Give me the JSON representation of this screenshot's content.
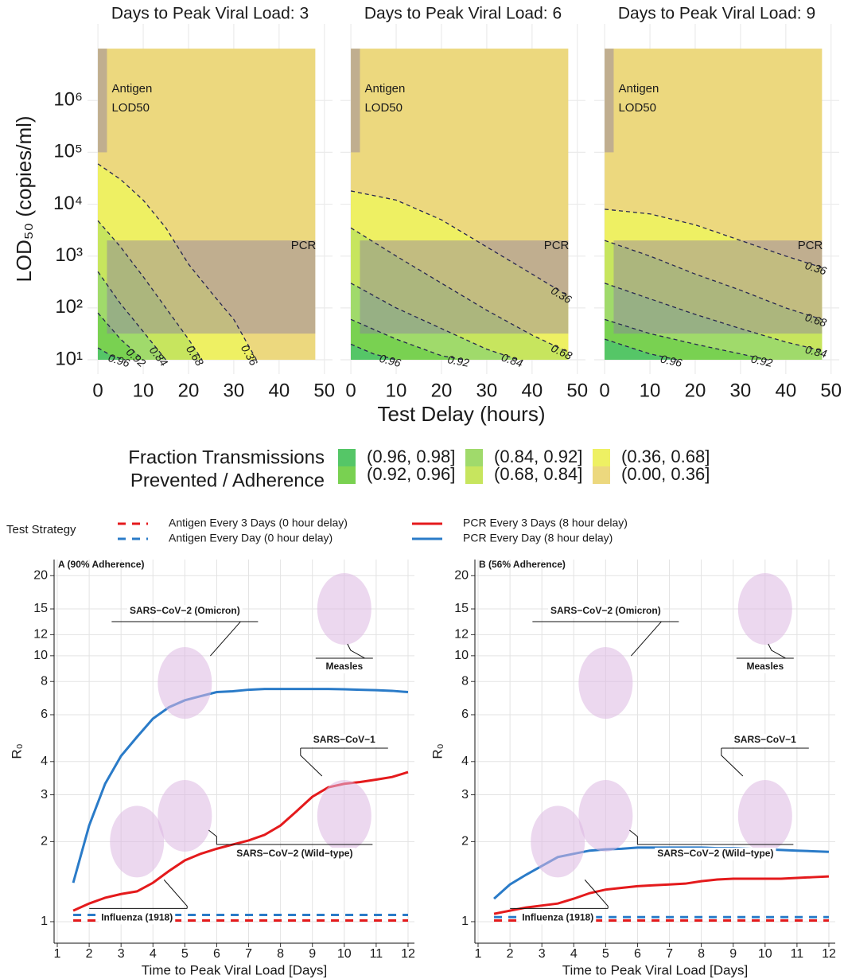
{
  "top_figure": {
    "xlabel": "Test Delay (hours)",
    "legend_title": [
      "Fraction Transmissions",
      "Prevented / Adherence"
    ],
    "bands": [
      {
        "label": "(0.96, 0.98]",
        "color": "#55c667"
      },
      {
        "label": "(0.92, 0.96]",
        "color": "#79d151"
      },
      {
        "label": "(0.84, 0.92]",
        "color": "#a0da6b"
      },
      {
        "label": "(0.68, 0.84]",
        "color": "#c7e55e"
      },
      {
        "label": "(0.36, 0.68]",
        "color": "#eef063"
      },
      {
        "label": "(0.00, 0.36]",
        "color": "#ecd87e"
      }
    ]
  },
  "bottom_figure": {
    "legend_title": "Test Strategy"
  },
  "chart_data": [
    {
      "type": "contour",
      "title": "Days to Peak Viral Load: 3",
      "ylabel": "LOD₅₀ (copies/ml)",
      "xlim": [
        -2.3,
        51.8
      ],
      "ylim": [
        5.3,
        30000000
      ],
      "log_y": true,
      "grid": true,
      "xticks": [
        0,
        10,
        20,
        30,
        40,
        50
      ],
      "yticks": [
        {
          "value": 10,
          "label": "10¹"
        },
        {
          "value": 100,
          "label": "10²"
        },
        {
          "value": 1000,
          "label": "10³"
        },
        {
          "value": 10000,
          "label": "10⁴"
        },
        {
          "value": 100000,
          "label": "10⁵"
        },
        {
          "value": 1000000,
          "label": "10⁶"
        }
      ],
      "extent": {
        "x": [
          0,
          48
        ],
        "y": [
          10,
          10000000
        ]
      },
      "boxes": [
        {
          "label": [
            "Antigen",
            "LOD50"
          ],
          "x": [
            0,
            2
          ],
          "y": [
            100000,
            10000000
          ]
        },
        {
          "label": [
            "PCR"
          ],
          "x": [
            2,
            48
          ],
          "y": [
            32,
            2000
          ]
        }
      ],
      "contours": [
        {
          "level": 0.96,
          "x": [
            0,
            3,
            6
          ],
          "y": [
            17,
            12,
            10
          ]
        },
        {
          "level": 0.92,
          "x": [
            0,
            5,
            10
          ],
          "y": [
            80,
            25,
            10
          ]
        },
        {
          "level": 0.84,
          "x": [
            0,
            5,
            10,
            15
          ],
          "y": [
            500,
            120,
            35,
            10
          ]
        },
        {
          "level": 0.68,
          "x": [
            0,
            5,
            10,
            15,
            20,
            23
          ],
          "y": [
            4800,
            1500,
            400,
            100,
            25,
            10
          ]
        },
        {
          "level": 0.36,
          "x": [
            0,
            5,
            10,
            15,
            20,
            25,
            30,
            35
          ],
          "y": [
            60000,
            30000,
            12000,
            3500,
            700,
            200,
            60,
            10
          ]
        }
      ]
    },
    {
      "type": "contour",
      "title": "Days to Peak Viral Load: 6",
      "xlim": [
        -2.3,
        51.8
      ],
      "ylim": [
        5.3,
        30000000
      ],
      "log_y": true,
      "grid": true,
      "xticks": [
        0,
        10,
        20,
        30,
        40,
        50
      ],
      "yticks": [
        10,
        100,
        1000,
        10000,
        100000,
        1000000
      ],
      "extent": {
        "x": [
          0,
          48
        ],
        "y": [
          10,
          10000000
        ]
      },
      "boxes": [
        {
          "label": [
            "Antigen",
            "LOD50"
          ],
          "x": [
            0,
            2
          ],
          "y": [
            100000,
            10000000
          ]
        },
        {
          "label": [
            "PCR"
          ],
          "x": [
            2,
            48
          ],
          "y": [
            32,
            2000
          ]
        }
      ],
      "contours": [
        {
          "level": 0.96,
          "x": [
            0,
            5,
            10
          ],
          "y": [
            20,
            13,
            10
          ]
        },
        {
          "level": 0.92,
          "x": [
            0,
            10,
            20,
            25
          ],
          "y": [
            60,
            25,
            12,
            10
          ]
        },
        {
          "level": 0.84,
          "x": [
            0,
            10,
            20,
            30,
            37
          ],
          "y": [
            300,
            100,
            40,
            16,
            10
          ]
        },
        {
          "level": 0.68,
          "x": [
            0,
            10,
            20,
            30,
            40,
            48
          ],
          "y": [
            3500,
            1000,
            300,
            90,
            30,
            14
          ]
        },
        {
          "level": 0.36,
          "x": [
            0,
            10,
            20,
            30,
            40,
            48
          ],
          "y": [
            18000,
            12000,
            5000,
            1500,
            450,
            170
          ]
        }
      ]
    },
    {
      "type": "contour",
      "title": "Days to Peak Viral Load: 9",
      "xlim": [
        -2.3,
        51.8
      ],
      "ylim": [
        5.3,
        30000000
      ],
      "log_y": true,
      "grid": true,
      "xticks": [
        0,
        10,
        20,
        30,
        40,
        50
      ],
      "yticks": [
        10,
        100,
        1000,
        10000,
        100000,
        1000000
      ],
      "extent": {
        "x": [
          0,
          48
        ],
        "y": [
          10,
          10000000
        ]
      },
      "boxes": [
        {
          "label": [
            "Antigen",
            "LOD50"
          ],
          "x": [
            0,
            2
          ],
          "y": [
            100000,
            10000000
          ]
        },
        {
          "label": [
            "PCR"
          ],
          "x": [
            2,
            48
          ],
          "y": [
            32,
            2000
          ]
        }
      ],
      "contours": [
        {
          "level": 0.96,
          "x": [
            0,
            10,
            16
          ],
          "y": [
            25,
            13,
            10
          ]
        },
        {
          "level": 0.92,
          "x": [
            0,
            10,
            20,
            30,
            36
          ],
          "y": [
            60,
            32,
            20,
            13,
            10
          ]
        },
        {
          "level": 0.84,
          "x": [
            0,
            10,
            20,
            30,
            40,
            48
          ],
          "y": [
            300,
            150,
            75,
            40,
            22,
            15
          ]
        },
        {
          "level": 0.68,
          "x": [
            0,
            10,
            20,
            30,
            40,
            48
          ],
          "y": [
            2000,
            1000,
            450,
            220,
            100,
            60
          ]
        },
        {
          "level": 0.36,
          "x": [
            0,
            10,
            20,
            30,
            40,
            48
          ],
          "y": [
            8000,
            6500,
            4000,
            2000,
            1000,
            600
          ]
        }
      ]
    },
    {
      "type": "line",
      "title": "A (90% Adherence)",
      "xlabel": "Time to Peak Viral Load [Days]",
      "ylabel": "R₀",
      "xlim": [
        0.9,
        12.2
      ],
      "ylim": [
        0.83,
        23
      ],
      "log_y": true,
      "grid": true,
      "xticks": [
        1,
        2,
        3,
        4,
        5,
        6,
        7,
        8,
        9,
        10,
        11,
        12
      ],
      "yticks": [
        1,
        2,
        3,
        4,
        6,
        8,
        10,
        12,
        15,
        20
      ],
      "x": [
        1.5,
        2,
        2.5,
        3,
        3.5,
        4,
        4.5,
        5,
        5.5,
        6,
        6.5,
        7,
        7.5,
        8,
        8.5,
        9,
        9.5,
        10,
        10.5,
        11,
        11.5,
        12
      ],
      "series": [
        {
          "name": "Antigen Every 3 Days (0 hour delay)",
          "color": "#e41a1c",
          "dash": true,
          "values": [
            1.01,
            1.01,
            1.01,
            1.01,
            1.01,
            1.01,
            1.01,
            1.01,
            1.01,
            1.01,
            1.01,
            1.01,
            1.01,
            1.01,
            1.01,
            1.01,
            1.01,
            1.01,
            1.01,
            1.01,
            1.01,
            1.01
          ]
        },
        {
          "name": "Antigen Every Day (0 hour delay)",
          "color": "#2a7bc8",
          "dash": true,
          "values": [
            1.06,
            1.06,
            1.06,
            1.06,
            1.06,
            1.06,
            1.06,
            1.06,
            1.06,
            1.06,
            1.06,
            1.06,
            1.06,
            1.06,
            1.06,
            1.06,
            1.06,
            1.06,
            1.06,
            1.06,
            1.06,
            1.06
          ]
        },
        {
          "name": "PCR Every 3 Days (8 hour delay)",
          "color": "#e41a1c",
          "dash": false,
          "values": [
            1.1,
            1.17,
            1.23,
            1.27,
            1.3,
            1.4,
            1.55,
            1.7,
            1.8,
            1.88,
            1.95,
            2.02,
            2.12,
            2.3,
            2.6,
            2.95,
            3.2,
            3.3,
            3.35,
            3.42,
            3.5,
            3.65
          ]
        },
        {
          "name": "PCR Every Day (8 hour delay)",
          "color": "#2a7bc8",
          "dash": false,
          "values": [
            1.4,
            2.3,
            3.3,
            4.2,
            4.95,
            5.8,
            6.4,
            6.8,
            7.05,
            7.3,
            7.35,
            7.45,
            7.5,
            7.5,
            7.5,
            7.5,
            7.5,
            7.48,
            7.45,
            7.42,
            7.38,
            7.3
          ]
        }
      ],
      "pathogens": [
        {
          "name": "SARS−CoV−2 (Omicron)",
          "x": 5,
          "y": 7.9
        },
        {
          "name": "Measles",
          "x": 10,
          "y": 15
        },
        {
          "name": "SARS−CoV−1",
          "x": 10,
          "y": 2.5
        },
        {
          "name": "SARS−CoV−2 (Wild−type)",
          "x": 5,
          "y": 2.5
        },
        {
          "name": "Influenza (1918)",
          "x": 3.5,
          "y": 2
        }
      ]
    },
    {
      "type": "line",
      "title": "B (56% Adherence)",
      "xlabel": "Time to Peak Viral Load [Days]",
      "ylabel": "R₀",
      "xlim": [
        0.9,
        12.2
      ],
      "ylim": [
        0.83,
        23
      ],
      "log_y": true,
      "grid": true,
      "xticks": [
        1,
        2,
        3,
        4,
        5,
        6,
        7,
        8,
        9,
        10,
        11,
        12
      ],
      "yticks": [
        1,
        2,
        3,
        4,
        6,
        8,
        10,
        12,
        15,
        20
      ],
      "x": [
        1.5,
        2,
        2.5,
        3,
        3.5,
        4,
        4.5,
        5,
        5.5,
        6,
        6.5,
        7,
        7.5,
        8,
        8.5,
        9,
        9.5,
        10,
        10.5,
        11,
        11.5,
        12
      ],
      "series": [
        {
          "color": "#e41a1c",
          "dash": true,
          "values": [
            1.01,
            1.01,
            1.01,
            1.01,
            1.01,
            1.01,
            1.01,
            1.01,
            1.01,
            1.01,
            1.01,
            1.01,
            1.01,
            1.01,
            1.01,
            1.01,
            1.01,
            1.01,
            1.01,
            1.01,
            1.01,
            1.01
          ]
        },
        {
          "color": "#2a7bc8",
          "dash": true,
          "values": [
            1.04,
            1.04,
            1.04,
            1.04,
            1.04,
            1.04,
            1.04,
            1.04,
            1.04,
            1.04,
            1.04,
            1.04,
            1.04,
            1.04,
            1.04,
            1.04,
            1.04,
            1.04,
            1.04,
            1.04,
            1.04,
            1.04
          ]
        },
        {
          "color": "#e41a1c",
          "dash": false,
          "values": [
            1.07,
            1.1,
            1.13,
            1.15,
            1.17,
            1.22,
            1.28,
            1.32,
            1.34,
            1.36,
            1.37,
            1.38,
            1.39,
            1.42,
            1.44,
            1.45,
            1.45,
            1.45,
            1.45,
            1.46,
            1.47,
            1.48
          ]
        },
        {
          "color": "#2a7bc8",
          "dash": false,
          "values": [
            1.22,
            1.38,
            1.5,
            1.62,
            1.75,
            1.8,
            1.85,
            1.87,
            1.88,
            1.9,
            1.9,
            1.9,
            1.9,
            1.9,
            1.89,
            1.89,
            1.88,
            1.87,
            1.86,
            1.85,
            1.84,
            1.83
          ]
        }
      ],
      "pathogens": [
        {
          "name": "SARS−CoV−2 (Omicron)",
          "x": 5,
          "y": 7.9
        },
        {
          "name": "Measles",
          "x": 10,
          "y": 15
        },
        {
          "name": "SARS−CoV−1",
          "x": 10,
          "y": 2.5
        },
        {
          "name": "SARS−CoV−2 (Wild−type)",
          "x": 5,
          "y": 2.5
        },
        {
          "name": "Influenza (1918)",
          "x": 3.5,
          "y": 2
        }
      ]
    }
  ]
}
